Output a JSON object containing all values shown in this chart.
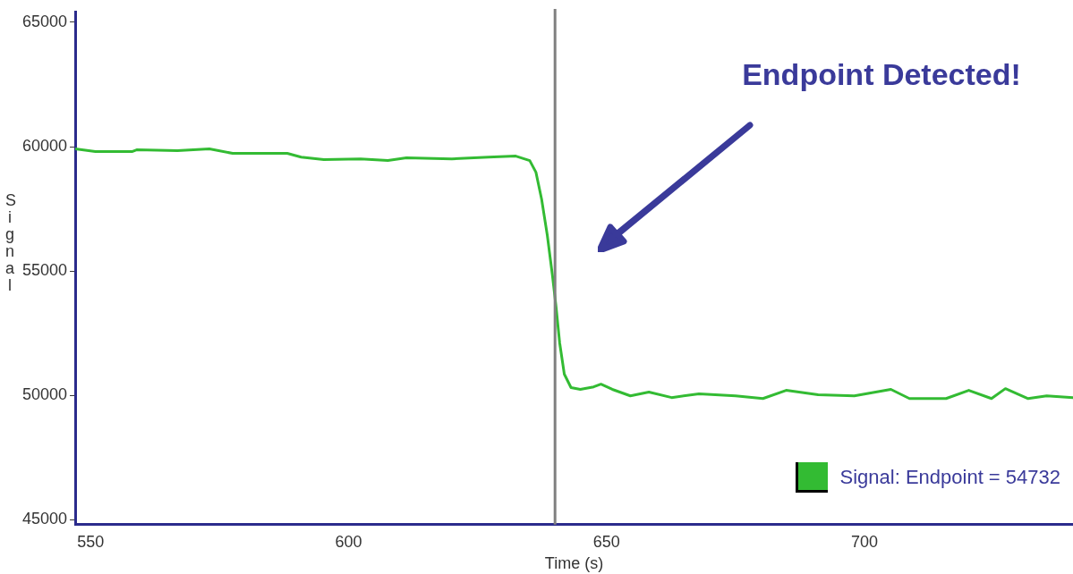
{
  "chart_data": {
    "type": "line",
    "xlabel": "Time (s)",
    "ylabel": "Signal",
    "x": [
      547,
      550.9,
      558,
      558.9,
      566.8,
      573,
      577.5,
      588.1,
      590.8,
      595.2,
      602.3,
      607.6,
      611.2,
      620,
      627.1,
      632.4,
      635.1,
      636.3,
      637.4,
      638.5,
      639.5,
      640.2,
      640.9,
      641.8,
      643.1,
      644.9,
      647.5,
      648.9,
      651.1,
      654.6,
      658.2,
      662.6,
      667.9,
      675,
      680.3,
      684.8,
      691,
      698,
      705.1,
      708.7,
      715.8,
      720.2,
      724.6,
      727.3,
      731.7,
      735.3,
      740.4
    ],
    "series": [
      {
        "name": "Signal: Endpoint = 54732",
        "color": "#33bb33",
        "values": [
          59910,
          59800,
          59800,
          59870,
          59840,
          59910,
          59730,
          59730,
          59580,
          59480,
          59510,
          59440,
          59550,
          59510,
          59580,
          59620,
          59440,
          58970,
          57890,
          56440,
          54820,
          53560,
          52110,
          50850,
          50310,
          50240,
          50340,
          50450,
          50240,
          49980,
          50130,
          49910,
          50060,
          49980,
          49870,
          50200,
          50020,
          49980,
          50240,
          49870,
          49870,
          50200,
          49870,
          50270,
          49870,
          49980,
          49910
        ]
      }
    ],
    "xlim": [
      547,
      740.4
    ],
    "xticks": [
      550,
      600,
      650,
      700
    ],
    "ylim": [
      44800,
      65400
    ],
    "yticks": [
      45000,
      50000,
      55000,
      60000,
      65000
    ],
    "ref_lines": [
      {
        "axis": "x",
        "value": 640,
        "color": "#808080"
      }
    ],
    "annotations": [
      "Endpoint Detected!"
    ],
    "legend": "bottom right",
    "grid": false,
    "marker": "none",
    "line_style": "solid"
  }
}
